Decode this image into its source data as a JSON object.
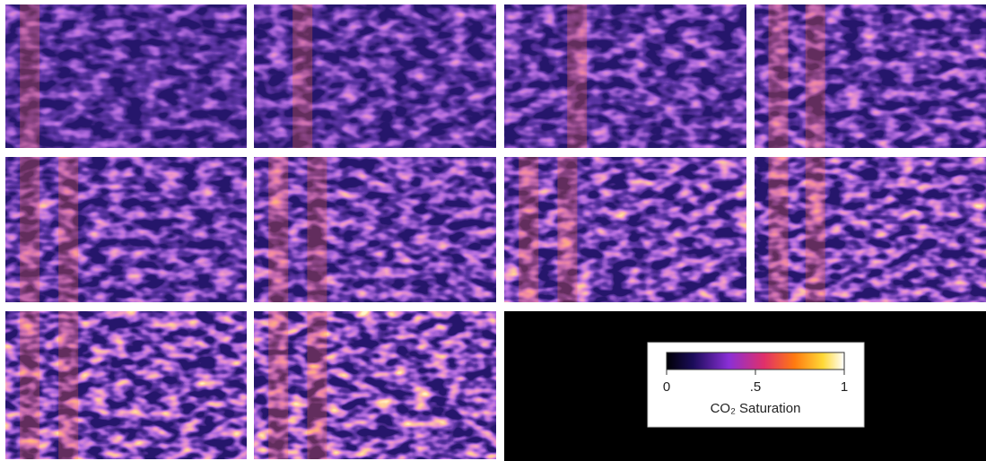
{
  "colorbar": {
    "range": [
      0,
      1
    ],
    "ticks": [
      0,
      {
        "value": 0.5,
        "label": ".5"
      },
      1
    ],
    "label": "CO₂ Saturation"
  }
}
